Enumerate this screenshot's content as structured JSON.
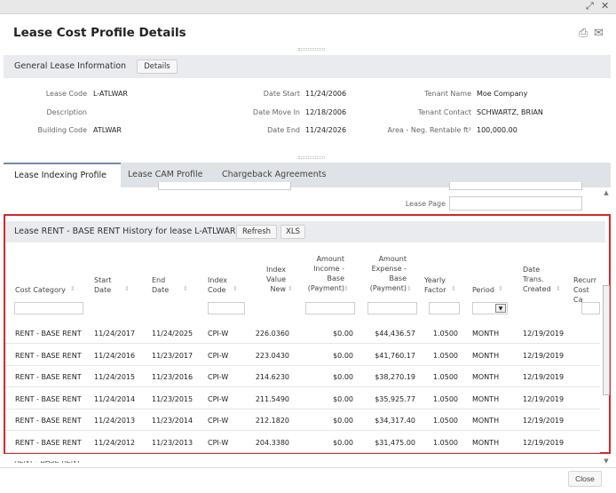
{
  "window": {
    "title": "Lease Cost Profile Details",
    "expand_glyph": "⤢",
    "close_glyph": "✕",
    "print_glyph": "⎙",
    "email_glyph": "✉",
    "close_button": "Close"
  },
  "general": {
    "section_title": "General Lease Information",
    "details_button": "Details",
    "fields": {
      "lease_code_label": "Lease Code",
      "lease_code": "L-ATLWAR",
      "description_label": "Description",
      "description": "",
      "building_code_label": "Building Code",
      "building_code": "ATLWAR",
      "date_start_label": "Date Start",
      "date_start": "11/24/2006",
      "date_move_in_label": "Date Move In",
      "date_move_in": "12/18/2006",
      "date_end_label": "Date End",
      "date_end": "11/24/2026",
      "tenant_name_label": "Tenant Name",
      "tenant_name": "Moe Company",
      "tenant_contact_label": "Tenant Contact",
      "tenant_contact": "SCHWARTZ, BRIAN",
      "area_label": "Area - Neg. Rentable ft²",
      "area": "100,000.00"
    }
  },
  "tabs": [
    {
      "label": "Lease Indexing Profile",
      "active": true
    },
    {
      "label": "Lease CAM Profile",
      "active": false
    },
    {
      "label": "Chargeback Agreements",
      "active": false
    }
  ],
  "lease_page_label": "Lease Page",
  "history": {
    "title": "Lease RENT - BASE RENT History for lease L-ATLWAR",
    "refresh_button": "Refresh",
    "xls_button": "XLS",
    "columns": {
      "cost_category": "Cost Category",
      "start_date": "Start Date",
      "end_date": "End Date",
      "index_code": "Index Code",
      "index_value_new": "Index Value New",
      "amount_income": "Amount Income - Base (Payment)",
      "amount_expense": "Amount Expense - Base (Payment)",
      "yearly_factor": "Yearly Factor",
      "period": "Period",
      "date_trans_created": "Date Trans. Created",
      "recurring_cost": "Recurr Cost Ca"
    },
    "rows": [
      {
        "cat": "RENT - BASE RENT",
        "start": "11/24/2017",
        "end": "11/24/2025",
        "code": "CPI-W",
        "index": "226.0360",
        "income": "$0.00",
        "expense": "$44,436.57",
        "factor": "1.0500",
        "period": "MONTH",
        "created": "12/19/2019"
      },
      {
        "cat": "RENT - BASE RENT",
        "start": "11/24/2016",
        "end": "11/23/2017",
        "code": "CPI-W",
        "index": "223.0430",
        "income": "$0.00",
        "expense": "$41,760.17",
        "factor": "1.0500",
        "period": "MONTH",
        "created": "12/19/2019"
      },
      {
        "cat": "RENT - BASE RENT",
        "start": "11/24/2015",
        "end": "11/23/2016",
        "code": "CPI-W",
        "index": "214.6230",
        "income": "$0.00",
        "expense": "$38,270.19",
        "factor": "1.0500",
        "period": "MONTH",
        "created": "12/19/2019"
      },
      {
        "cat": "RENT - BASE RENT",
        "start": "11/24/2014",
        "end": "11/23/2015",
        "code": "CPI-W",
        "index": "211.5490",
        "income": "$0.00",
        "expense": "$35,925.77",
        "factor": "1.0500",
        "period": "MONTH",
        "created": "12/19/2019"
      },
      {
        "cat": "RENT - BASE RENT",
        "start": "11/24/2013",
        "end": "11/23/2014",
        "code": "CPI-W",
        "index": "212.1820",
        "income": "$0.00",
        "expense": "$34,317.40",
        "factor": "1.0500",
        "period": "MONTH",
        "created": "12/19/2019"
      },
      {
        "cat": "RENT - BASE RENT",
        "start": "11/24/2012",
        "end": "11/23/2013",
        "code": "CPI-W",
        "index": "204.3380",
        "income": "$0.00",
        "expense": "$31,475.00",
        "factor": "1.0500",
        "period": "MONTH",
        "created": "12/19/2019"
      }
    ]
  }
}
